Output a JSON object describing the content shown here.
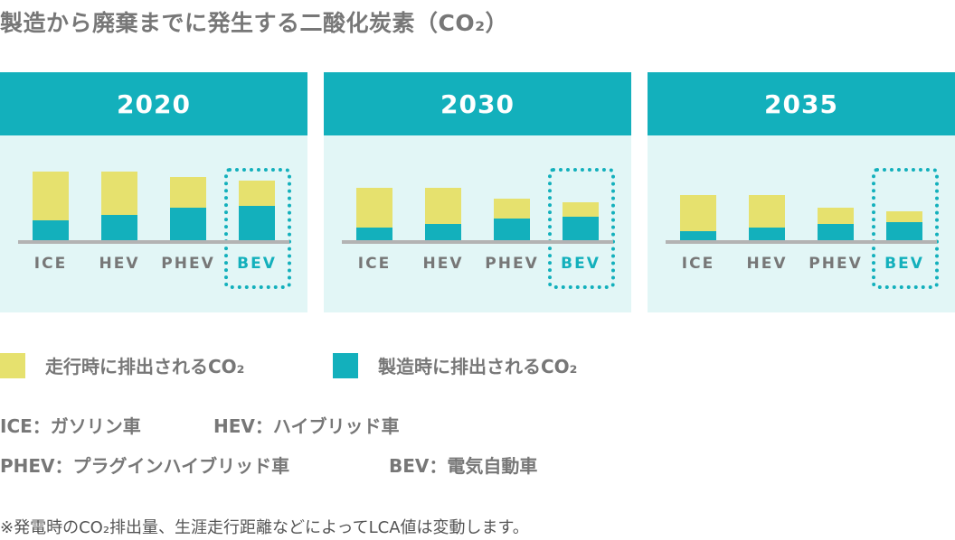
{
  "colors": {
    "header": "#13B0BC",
    "panel_bg": "#E2F6F6",
    "driving": "#E6E16E",
    "manufacturing": "#13B0BC",
    "axis": "#B3B3B3",
    "text": "#777777"
  },
  "chart_data": {
    "type": "bar",
    "stacked": true,
    "title": "製造から廃棄までに発生する二酸化炭素（CO₂）",
    "categories": [
      "ICE",
      "HEV",
      "PHEV",
      "BEV"
    ],
    "highlighted_category": "BEV",
    "axis_labels_shown": false,
    "panels": [
      {
        "year": "2020",
        "series": [
          {
            "name": "製造時に排出されるCO₂",
            "values": [
              22,
              28,
              36,
              38
            ]
          },
          {
            "name": "走行時に排出されるCO₂",
            "values": [
              54,
              48,
              34,
              28
            ]
          }
        ]
      },
      {
        "year": "2030",
        "series": [
          {
            "name": "製造時に排出されるCO₂",
            "values": [
              14,
              18,
              24,
              26
            ]
          },
          {
            "name": "走行時に排出されるCO₂",
            "values": [
              44,
              40,
              22,
              16
            ]
          }
        ]
      },
      {
        "year": "2035",
        "series": [
          {
            "name": "製造時に排出されるCO₂",
            "values": [
              10,
              14,
              18,
              20
            ]
          },
          {
            "name": "走行時に排出されるCO₂",
            "values": [
              40,
              36,
              18,
              12
            ]
          }
        ]
      }
    ],
    "legend_position": "bottom-left"
  },
  "legend": [
    {
      "label": "走行時に排出されるCO₂",
      "color": "#E6E16E"
    },
    {
      "label": "製造時に排出されるCO₂",
      "color": "#13B0BC"
    }
  ],
  "abbreviations": [
    "ICE：ガソリン車",
    "HEV：ハイブリッド車",
    "PHEV：プラグインハイブリッド車",
    "BEV：電気自動車"
  ],
  "note": "※発電時のCO₂排出量、生涯走行距離などによってLCA値は変動します。"
}
